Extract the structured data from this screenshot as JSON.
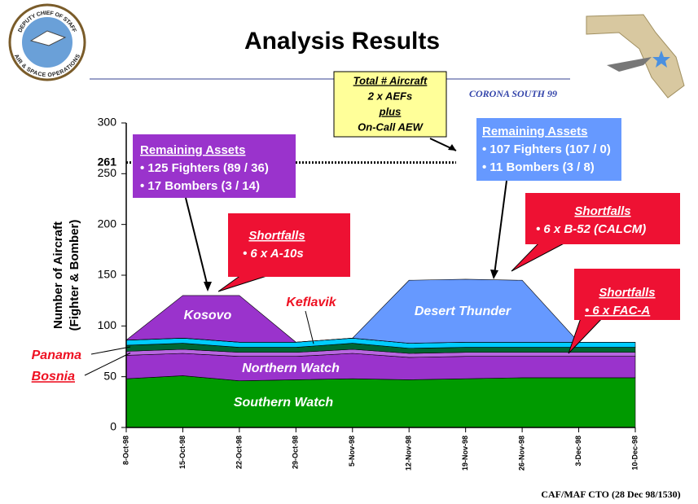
{
  "header": {
    "title": "Analysis Results",
    "tag": "CORONA SOUTH 99",
    "logo_top": "DEPUTY CHIEF OF STAFF",
    "logo_bottom": "AIR & SPACE OPERATIONS"
  },
  "footer": "CAF/MAF CTO (28 Dec 98/1530)",
  "chart_data": {
    "type": "stacked_area",
    "y_label": [
      "Number of Aircraft",
      "(Fighter & Bomber)"
    ],
    "categories": [
      "8-Oct-98",
      "15-Oct-98",
      "22-Oct-98",
      "29-Oct-98",
      "5-Nov-98",
      "12-Nov-98",
      "19-Nov-98",
      "26-Nov-98",
      "3-Dec-98",
      "10-Dec-98"
    ],
    "series": [
      {
        "name": "Southern Watch",
        "color": "#009a00",
        "values": [
          48,
          51,
          46,
          47,
          48,
          47,
          48,
          49,
          49,
          49
        ]
      },
      {
        "name": "Northern Watch",
        "color": "#9a33cc",
        "values": [
          23,
          22,
          24,
          23,
          25,
          22,
          22,
          21,
          21,
          21
        ]
      },
      {
        "name": "Bosnia",
        "color": "#b866e0",
        "values": [
          4,
          4,
          4,
          4,
          4,
          4,
          4,
          4,
          4,
          4
        ]
      },
      {
        "name": "Panama",
        "color": "#006633",
        "values": [
          6,
          6,
          5,
          5,
          6,
          5,
          5,
          5,
          5,
          5
        ]
      },
      {
        "name": "Keflavik",
        "color": "#00ccff",
        "values": [
          5,
          5,
          5,
          5,
          5,
          5,
          5,
          5,
          5,
          5
        ]
      },
      {
        "name": "Kosovo",
        "color": "#9a33cc",
        "values": [
          0,
          42,
          46,
          0,
          0,
          0,
          0,
          0,
          0,
          0
        ]
      },
      {
        "name": "Desert Thunder",
        "color": "#6699ff",
        "values": [
          0,
          0,
          0,
          0,
          0,
          62,
          62,
          61,
          0,
          0
        ]
      }
    ],
    "ylim": [
      0,
      300
    ],
    "yticks": [
      0,
      50,
      100,
      150,
      200,
      250,
      300
    ],
    "reference_line": 261,
    "annotations": {
      "total": [
        "Total # Aircraft",
        "2 x AEFs",
        "plus",
        "On-Call AEW"
      ],
      "remaining_left": [
        "Remaining Assets",
        "• 125 Fighters (89 / 36)",
        "• 17 Bombers (3 / 14)"
      ],
      "remaining_right": [
        "Remaining Assets",
        "• 107 Fighters (107 / 0)",
        "• 11 Bombers (3 / 8)"
      ],
      "shortfall_a10": [
        "Shortfalls",
        "• 6 x A-10s"
      ],
      "shortfall_b52": [
        "Shortfalls",
        "• 6 x B-52 (CALCM)"
      ],
      "shortfall_faca": [
        "Shortfalls",
        "• 6 x FAC-A"
      ]
    }
  }
}
